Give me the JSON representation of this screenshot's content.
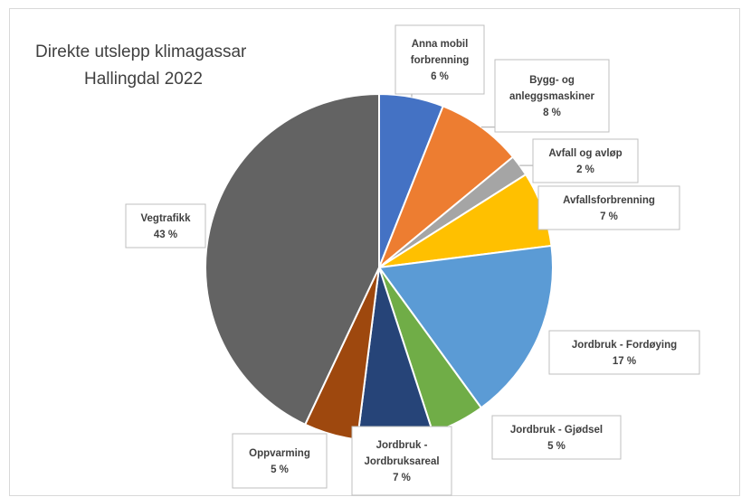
{
  "chart_data": {
    "type": "pie",
    "title_lines": [
      "Direkte utslepp klimagassar",
      "Hallingdal 2022"
    ],
    "slices": [
      {
        "label_lines": [
          "Anna mobil",
          "forbrenning"
        ],
        "percent_label": "6 %",
        "value": 6,
        "color": "#4472C4"
      },
      {
        "label_lines": [
          "Bygg- og",
          "anleggsmaskiner"
        ],
        "percent_label": "8 %",
        "value": 8,
        "color": "#ED7D31"
      },
      {
        "label_lines": [
          "Avfall og avløp"
        ],
        "percent_label": "2 %",
        "value": 2,
        "color": "#A5A5A5"
      },
      {
        "label_lines": [
          "Avfallsforbrenning"
        ],
        "percent_label": "7 %",
        "value": 7,
        "color": "#FFC000"
      },
      {
        "label_lines": [
          "Jordbruk  - Fordøying"
        ],
        "percent_label": "17 %",
        "value": 17,
        "color": "#5B9BD5"
      },
      {
        "label_lines": [
          "Jordbruk  - Gjødsel"
        ],
        "percent_label": "5 %",
        "value": 5,
        "color": "#70AD47"
      },
      {
        "label_lines": [
          "Jordbruk -",
          "Jordbruksareal"
        ],
        "percent_label": "7 %",
        "value": 7,
        "color": "#264478"
      },
      {
        "label_lines": [
          "Oppvarming"
        ],
        "percent_label": "5 %",
        "value": 5,
        "color": "#9E480E"
      },
      {
        "label_lines": [
          "Vegtrafikk"
        ],
        "percent_label": "43 %",
        "value": 43,
        "color": "#636363"
      }
    ]
  }
}
